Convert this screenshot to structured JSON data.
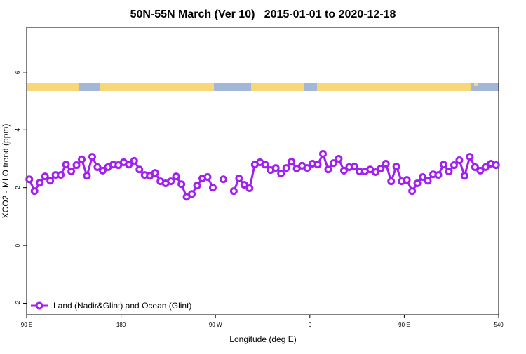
{
  "chart_data": {
    "type": "line",
    "title": "50N-55N March (Ver 10)   2015-01-01 to 2020-12-18",
    "xlabel": "Longitude (deg E)",
    "ylabel": "XCO2 - MLO trend (ppm)",
    "x": [
      92.5,
      97.5,
      102.5,
      107.5,
      112.5,
      117.5,
      122.5,
      127.5,
      132.5,
      137.5,
      142.5,
      147.5,
      152.5,
      157.5,
      162.5,
      167.5,
      172.5,
      177.5,
      182.5,
      187.5,
      192.5,
      197.5,
      202.5,
      207.5,
      212.5,
      217.5,
      222.5,
      227.5,
      232.5,
      237.5,
      242.5,
      247.5,
      252.5,
      257.5,
      262.5,
      267.5,
      272.5,
      277.5,
      282.5,
      287.5,
      292.5,
      297.5,
      302.5,
      307.5,
      312.5,
      317.5,
      322.5,
      327.5,
      332.5,
      337.5,
      342.5,
      347.5,
      352.5,
      357.5,
      362.5,
      367.5,
      372.5,
      377.5,
      382.5,
      387.5,
      392.5,
      397.5,
      402.5,
      407.5,
      412.5,
      417.5,
      422.5,
      427.5,
      432.5,
      437.5,
      442.5,
      447.5,
      452.5,
      457.5,
      462.5,
      467.5,
      472.5,
      477.5,
      482.5,
      487.5,
      492.5,
      497.5,
      502.5,
      507.5,
      512.5,
      517.5,
      522.5,
      527.5,
      532.5,
      537.5
    ],
    "series": [
      {
        "name": "Land (Nadir&Glint) and Ocean (Glint)",
        "color": "#a020f0",
        "values": [
          2.29,
          1.88,
          2.17,
          2.39,
          2.24,
          2.44,
          2.44,
          2.8,
          2.56,
          2.78,
          2.98,
          2.41,
          3.07,
          2.71,
          2.59,
          2.71,
          2.8,
          2.78,
          2.88,
          2.8,
          2.93,
          2.63,
          2.44,
          2.41,
          2.51,
          2.22,
          2.15,
          2.22,
          2.39,
          2.12,
          1.68,
          1.78,
          2.07,
          2.32,
          2.37,
          2.0,
          null,
          2.29,
          null,
          1.88,
          2.32,
          2.1,
          1.98,
          2.8,
          2.88,
          2.8,
          2.61,
          2.68,
          2.49,
          2.68,
          2.9,
          2.66,
          2.76,
          2.68,
          2.83,
          2.8,
          3.17,
          2.63,
          2.85,
          3.0,
          2.59,
          2.71,
          2.73,
          2.56,
          2.56,
          2.63,
          2.54,
          2.66,
          2.83,
          2.22,
          2.73,
          2.22,
          2.27,
          1.88,
          2.15,
          2.37,
          2.24,
          2.46,
          2.44,
          2.8,
          2.56,
          2.78,
          2.95,
          2.41,
          3.07,
          2.71,
          2.59,
          2.71,
          2.83,
          2.78
        ]
      }
    ],
    "xlim": [
      90,
      540
    ],
    "ylim": [
      -2.4,
      7.55
    ],
    "xticks": [
      {
        "value": 90,
        "label": "90 E"
      },
      180,
      {
        "value": 270,
        "label": "90 W"
      },
      {
        "value": 360,
        "label": "0"
      },
      {
        "value": 450,
        "label": "90 E"
      },
      540
    ],
    "yticks": [
      -2,
      0,
      2,
      4,
      6
    ],
    "legend": "lower left"
  }
}
